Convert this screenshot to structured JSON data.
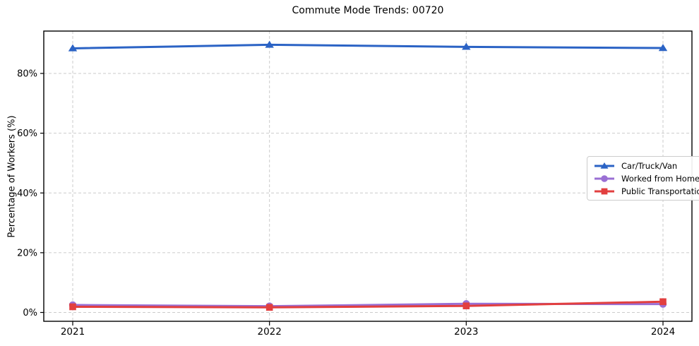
{
  "chart_data": {
    "type": "line",
    "title": "Commute Mode Trends: 00720",
    "xlabel": "",
    "ylabel": "Percentage of Workers (%)",
    "categories": [
      "2021",
      "2022",
      "2023",
      "2024"
    ],
    "series": [
      {
        "name": "Car/Truck/Van",
        "color": "#2b63c5",
        "marker": "triangle",
        "values": [
          88.4,
          89.6,
          88.9,
          88.5
        ]
      },
      {
        "name": "Worked from Home",
        "color": "#9a6fd4",
        "marker": "circle",
        "values": [
          2.5,
          2.1,
          2.9,
          2.8
        ]
      },
      {
        "name": "Public Transportation",
        "color": "#e23f3f",
        "marker": "square",
        "values": [
          1.9,
          1.7,
          2.2,
          3.6
        ]
      }
    ],
    "yticks": [
      0,
      20,
      40,
      60,
      80
    ],
    "ytick_labels": [
      "0%",
      "20%",
      "40%",
      "60%",
      "80%"
    ],
    "ylim": [
      -3,
      94
    ],
    "grid": true,
    "grid_style": "dashed",
    "legend_position": "center-right",
    "colors": {
      "grid": "#cbcbcb",
      "frame": "#000000",
      "background": "#ffffff"
    }
  }
}
